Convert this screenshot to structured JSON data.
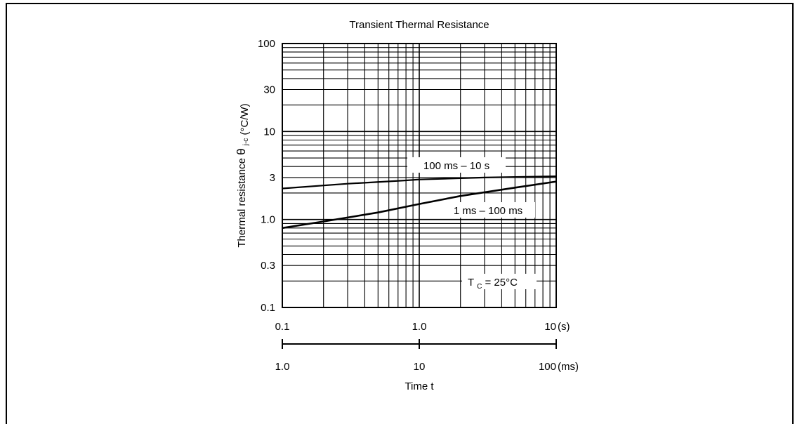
{
  "chart_data": {
    "type": "line",
    "title": "Transient Thermal Resistance",
    "ylabel": "Thermal resistance",
    "ylabel_symbol": "θ",
    "ylabel_subscript": "j-c",
    "ylabel_unit": "(°C/W)",
    "xlabel": "Time t",
    "x_scale": "log",
    "y_scale": "log",
    "xlim": [
      0.1,
      10
    ],
    "ylim": [
      0.1,
      100
    ],
    "x_ticks": [
      "0.1",
      "1.0",
      "10"
    ],
    "x_unit": "(s)",
    "y_ticks": [
      "0.1",
      "0.3",
      "1.0",
      "3",
      "10",
      "30",
      "100"
    ],
    "y_tick_values": [
      0.1,
      0.3,
      1.0,
      3,
      10,
      30,
      100
    ],
    "secondary_x_ticks": [
      "1.0",
      "10",
      "100"
    ],
    "secondary_x_unit": "(ms)",
    "grid": true,
    "series": [
      {
        "name": "100 ms – 10 s",
        "x": [
          0.1,
          0.3,
          0.8,
          1.0,
          3.0,
          10.0
        ],
        "y": [
          2.25,
          2.55,
          2.78,
          2.85,
          3.0,
          3.1
        ]
      },
      {
        "name": "1 ms – 100 ms",
        "x": [
          0.1,
          0.2,
          0.5,
          1.0,
          2.0,
          5.0,
          10.0
        ],
        "y": [
          0.8,
          0.95,
          1.2,
          1.5,
          1.85,
          2.3,
          2.7
        ]
      }
    ],
    "annotations": [
      {
        "text_main": "T",
        "text_sub": "C",
        "text_tail": " = 25°C"
      }
    ]
  }
}
